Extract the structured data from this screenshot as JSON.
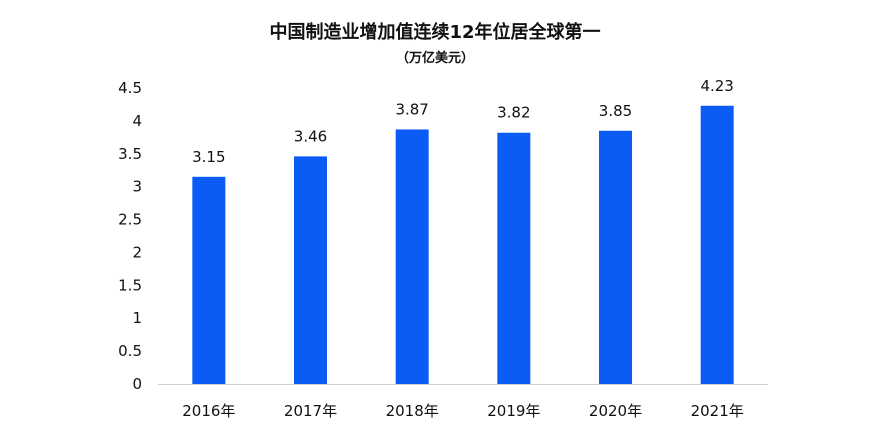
{
  "chart_data": {
    "type": "bar",
    "title": "中国制造业增加值连续12年位居全球第一",
    "subtitle": "（万亿美元）",
    "categories": [
      "2016年",
      "2017年",
      "2018年",
      "2019年",
      "2020年",
      "2021年"
    ],
    "values": [
      3.15,
      3.46,
      3.87,
      3.82,
      3.85,
      4.23
    ],
    "data_labels": [
      "3.15",
      "3.46",
      "3.87",
      "3.82",
      "3.85",
      "4.23"
    ],
    "y_ticks": [
      "0",
      "0.5",
      "1",
      "1.5",
      "2",
      "2.5",
      "3",
      "3.5",
      "4",
      "4.5"
    ],
    "ylim": [
      0,
      4.5
    ],
    "grid": false,
    "legend": "none",
    "bar_color": "#0a5cf5",
    "axis_color": "#d0d0d0"
  }
}
